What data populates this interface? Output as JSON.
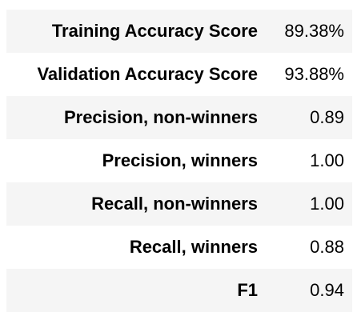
{
  "metrics": {
    "rows": [
      {
        "label": "Training Accuracy Score",
        "value": "89.38%"
      },
      {
        "label": "Validation Accuracy Score",
        "value": "93.88%"
      },
      {
        "label": "Precision, non-winners",
        "value": "0.89"
      },
      {
        "label": "Precision, winners",
        "value": "1.00"
      },
      {
        "label": "Recall, non-winners",
        "value": "1.00"
      },
      {
        "label": "Recall, winners",
        "value": "0.88"
      },
      {
        "label": "F1",
        "value": "0.94"
      }
    ]
  }
}
